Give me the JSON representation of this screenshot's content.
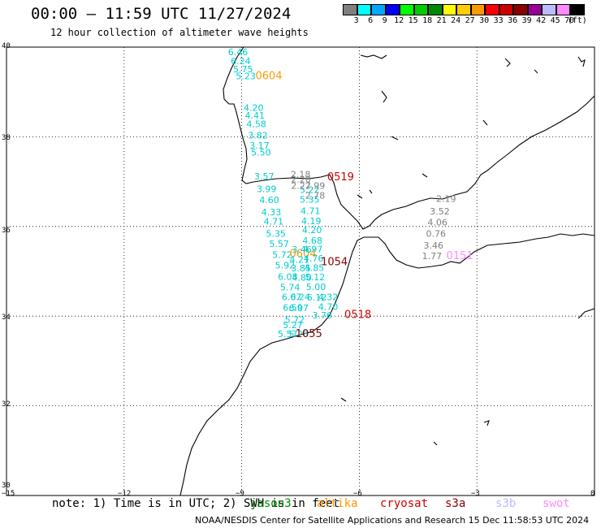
{
  "header": {
    "title": "00:00 – 11:59 UTC 11/27/2024",
    "subtitle": "12 hour collection of altimeter wave heights"
  },
  "legend": {
    "colors": [
      "#808080",
      "#00ffff",
      "#00a8ff",
      "#0000ff",
      "#00ff00",
      "#00cc00",
      "#008800",
      "#ffff00",
      "#ffcc00",
      "#ff9900",
      "#ff0000",
      "#cc0000",
      "#880000",
      "#990099",
      "#bbbbff",
      "#ff88ff",
      "#000000"
    ],
    "labels": [
      "3",
      "6",
      "9",
      "12",
      "15",
      "18",
      "21",
      "24",
      "27",
      "30",
      "33",
      "36",
      "39",
      "42",
      "45",
      "70",
      "(ft)"
    ]
  },
  "axes": {
    "y_labels": [
      "40",
      "38",
      "36",
      "34",
      "32",
      "30"
    ],
    "x_labels": [
      "−15",
      "−12",
      "−9",
      "−6",
      "−3",
      "0"
    ]
  },
  "chart_data": {
    "type": "map",
    "lon_range": [
      -15,
      0
    ],
    "lat_range": [
      30,
      40
    ],
    "grid": true,
    "grid_lons": [
      -12,
      -9,
      -6,
      -3
    ],
    "grid_lats": [
      38,
      36,
      34,
      32
    ],
    "tracks": [
      {
        "satellite": "altika",
        "color": "#00cccc",
        "time_label": "0604",
        "time_color": "#ff9900",
        "time_at": [
          -8.65,
          39.28
        ],
        "points": [
          [
            -9.35,
            39.82,
            "6.46"
          ],
          [
            -9.28,
            39.62,
            "6.24"
          ],
          [
            -9.22,
            39.44,
            "5.75"
          ],
          [
            -9.15,
            39.28,
            "5.23"
          ],
          [
            -8.95,
            38.58,
            "4.20"
          ],
          [
            -8.92,
            38.41,
            "4.41"
          ],
          [
            -8.88,
            38.22,
            "4.58"
          ],
          [
            -8.84,
            37.96,
            "3.82"
          ],
          [
            -8.8,
            37.74,
            "3.17"
          ],
          [
            -8.76,
            37.58,
            "5.50"
          ]
        ]
      },
      {
        "satellite": "altika",
        "color": "#00cccc",
        "time_label": "0604",
        "time_color": "#ff9900",
        "time_at": [
          -7.78,
          35.32
        ],
        "points": [
          [
            -8.68,
            37.05,
            "3.57"
          ],
          [
            -8.62,
            36.77,
            "3.99"
          ],
          [
            -8.55,
            36.52,
            "4.60"
          ],
          [
            -8.5,
            36.25,
            "4.33"
          ],
          [
            -8.44,
            36.04,
            "4.71"
          ],
          [
            -8.38,
            35.77,
            "5.35"
          ],
          [
            -8.3,
            35.54,
            "5.57"
          ],
          [
            -8.22,
            35.3,
            "5.72"
          ],
          [
            -8.15,
            35.06,
            "5.92"
          ],
          [
            -8.08,
            34.81,
            "6.08"
          ],
          [
            -8.02,
            34.57,
            "5.74"
          ],
          [
            -7.98,
            34.36,
            "6.07"
          ],
          [
            -7.95,
            34.12,
            "6.59"
          ],
          [
            -7.9,
            33.85,
            "5.72"
          ]
        ]
      },
      {
        "satellite": "cryosat",
        "color": "#00cccc",
        "time_label": "0519",
        "time_color": "#cc0000",
        "time_at": [
          -6.82,
          37.03
        ],
        "points": [
          [
            -7.52,
            36.75,
            "5.22"
          ],
          [
            -7.52,
            36.53,
            "5.35"
          ],
          [
            -7.5,
            36.28,
            "4.71"
          ],
          [
            -7.48,
            36.05,
            "4.19"
          ],
          [
            -7.46,
            35.85,
            "4.20"
          ],
          [
            -7.45,
            35.62,
            "4.68"
          ],
          [
            -7.44,
            35.43,
            "4.97"
          ],
          [
            -7.42,
            35.22,
            "4.76"
          ],
          [
            -7.4,
            35.01,
            "4.85"
          ],
          [
            -7.38,
            34.8,
            "5.12"
          ],
          [
            -7.36,
            34.58,
            "5.00"
          ],
          [
            -7.34,
            34.35,
            "6.12"
          ]
        ]
      },
      {
        "satellite": "cryosat",
        "color": "#808080",
        "time_label": "",
        "time_color": "#808080",
        "time_at": [
          0,
          0
        ],
        "points": [
          [
            -7.75,
            37.09,
            "2.18"
          ],
          [
            -7.74,
            36.98,
            "2.20"
          ],
          [
            -7.74,
            36.84,
            "2.27"
          ],
          [
            -7.38,
            36.84,
            "2.99"
          ],
          [
            -7.38,
            36.62,
            "2.78"
          ]
        ]
      },
      {
        "satellite": "s3a",
        "color": "#00cccc",
        "time_label": "1054",
        "time_color": "#880000",
        "time_at": [
          -6.98,
          35.14
        ],
        "points": [
          [
            -7.72,
            35.42,
            "3.46"
          ],
          [
            -7.78,
            35.19,
            "4.21"
          ],
          [
            -7.74,
            35.0,
            "3.85"
          ],
          [
            -7.72,
            34.79,
            "4.80"
          ],
          [
            -7.76,
            34.36,
            "6.24"
          ],
          [
            -7.8,
            34.11,
            "6.07"
          ]
        ]
      },
      {
        "satellite": "cryosat",
        "color": "#00cccc",
        "time_label": "0518",
        "time_color": "#cc0000",
        "time_at": [
          -6.38,
          33.96
        ],
        "points": [
          [
            -7.05,
            34.36,
            "4.32"
          ],
          [
            -7.05,
            34.14,
            "4.70"
          ],
          [
            -7.2,
            33.95,
            "3.76"
          ]
        ]
      },
      {
        "satellite": "mixed",
        "color": "#00cccc",
        "time_label": "1055",
        "time_color": "#880000",
        "time_at": [
          -7.63,
          33.53
        ],
        "points": [
          [
            -8.08,
            33.53,
            "5.57"
          ],
          [
            -7.8,
            33.53,
            "5.28"
          ],
          [
            -7.95,
            33.73,
            "5.27"
          ]
        ]
      },
      {
        "satellite": "s3b",
        "color": "#808080",
        "time_label": "0151",
        "time_color": "#ff88ff",
        "time_at": [
          -3.78,
          35.27
        ],
        "points": [
          [
            -4.04,
            36.55,
            "2.19"
          ],
          [
            -4.2,
            36.27,
            "3.52"
          ],
          [
            -4.26,
            36.02,
            "4.06"
          ],
          [
            -4.3,
            35.77,
            "0.76"
          ],
          [
            -4.36,
            35.51,
            "3.46"
          ],
          [
            -4.4,
            35.27,
            "1.77"
          ]
        ]
      }
    ]
  },
  "footer": {
    "note": "note:  1) Time is in UTC;  2) SWH is in feet",
    "satellites": [
      {
        "name": "jason3",
        "color": "#008800"
      },
      {
        "name": "altika",
        "color": "#ff9900"
      },
      {
        "name": "cryosat",
        "color": "#cc0000"
      },
      {
        "name": "s3a",
        "color": "#880000"
      },
      {
        "name": "s3b",
        "color": "#bbbbff"
      },
      {
        "name": "swot",
        "color": "#ff88ff"
      }
    ],
    "credit": "NOAA/NESDIS Center for Satellite Applications and Research    15 Dec 11:58:53 UTC 2024"
  }
}
